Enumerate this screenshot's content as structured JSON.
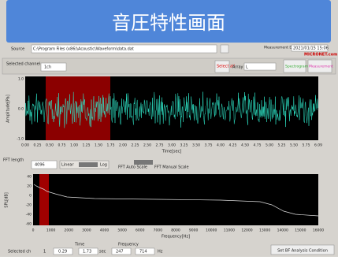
{
  "banner": {
    "title": "音圧特性画面"
  },
  "top_bar": {
    "source_label": "Source",
    "source_path": "C:\\Program Files (x86)\\Acoustic\\Waveform\\data.dat",
    "date_label": "Measurement Date",
    "date": "2021/01/15 15:06",
    "logo": "MICRONET.com"
  },
  "channel_bar": {
    "channel_label": "Selected channel",
    "channel": "1ch",
    "select_all": "Select all",
    "array_label": "Array",
    "array": "L",
    "spectrogram": "Spectrogram",
    "measurement": "Measurement"
  },
  "waveform": {
    "y_label": "Amplitude[Pa]",
    "x_label": "Time[sec]",
    "yticks": [
      "1.0",
      "0.0",
      "-1.0"
    ],
    "xticks": [
      "0.00",
      "0.25",
      "0.50",
      "0.75",
      "1.00",
      "1.25",
      "1.50",
      "1.75",
      "2.00",
      "2.25",
      "2.50",
      "2.75",
      "3.00",
      "3.25",
      "3.50",
      "3.75",
      "4.00",
      "4.25",
      "4.50",
      "4.75",
      "5.00",
      "5.25",
      "5.50",
      "5.75",
      "6.09"
    ]
  },
  "fft_bar": {
    "length_label": "FFT length",
    "length": "4096",
    "linear": "Linear",
    "log": "Log",
    "auto_scale": "FFT Auto Scale",
    "manual_scale": "FFT Manual Scale"
  },
  "spectrum": {
    "y_label": "SPL[dB]",
    "x_label": "Frequency[Hz]",
    "yticks": [
      "40",
      "20",
      "0",
      "-20",
      "-40",
      "-60"
    ],
    "xticks": [
      "0",
      "1000",
      "2000",
      "3000",
      "4000",
      "5000",
      "6000",
      "7000",
      "8000",
      "9000",
      "10000",
      "11000",
      "12000",
      "13000",
      "14000",
      "15000",
      "16000"
    ]
  },
  "bottom_bar": {
    "channel_label": "Selected ch",
    "channel": "1",
    "time_label": "Time",
    "time_start": "0.29",
    "time_end": "1.73",
    "time_unit": "sec",
    "freq_label": "Frequency",
    "freq_start": "247",
    "freq_end": "714",
    "freq_unit": "Hz",
    "button": "Set BF Analysis Condition"
  }
}
